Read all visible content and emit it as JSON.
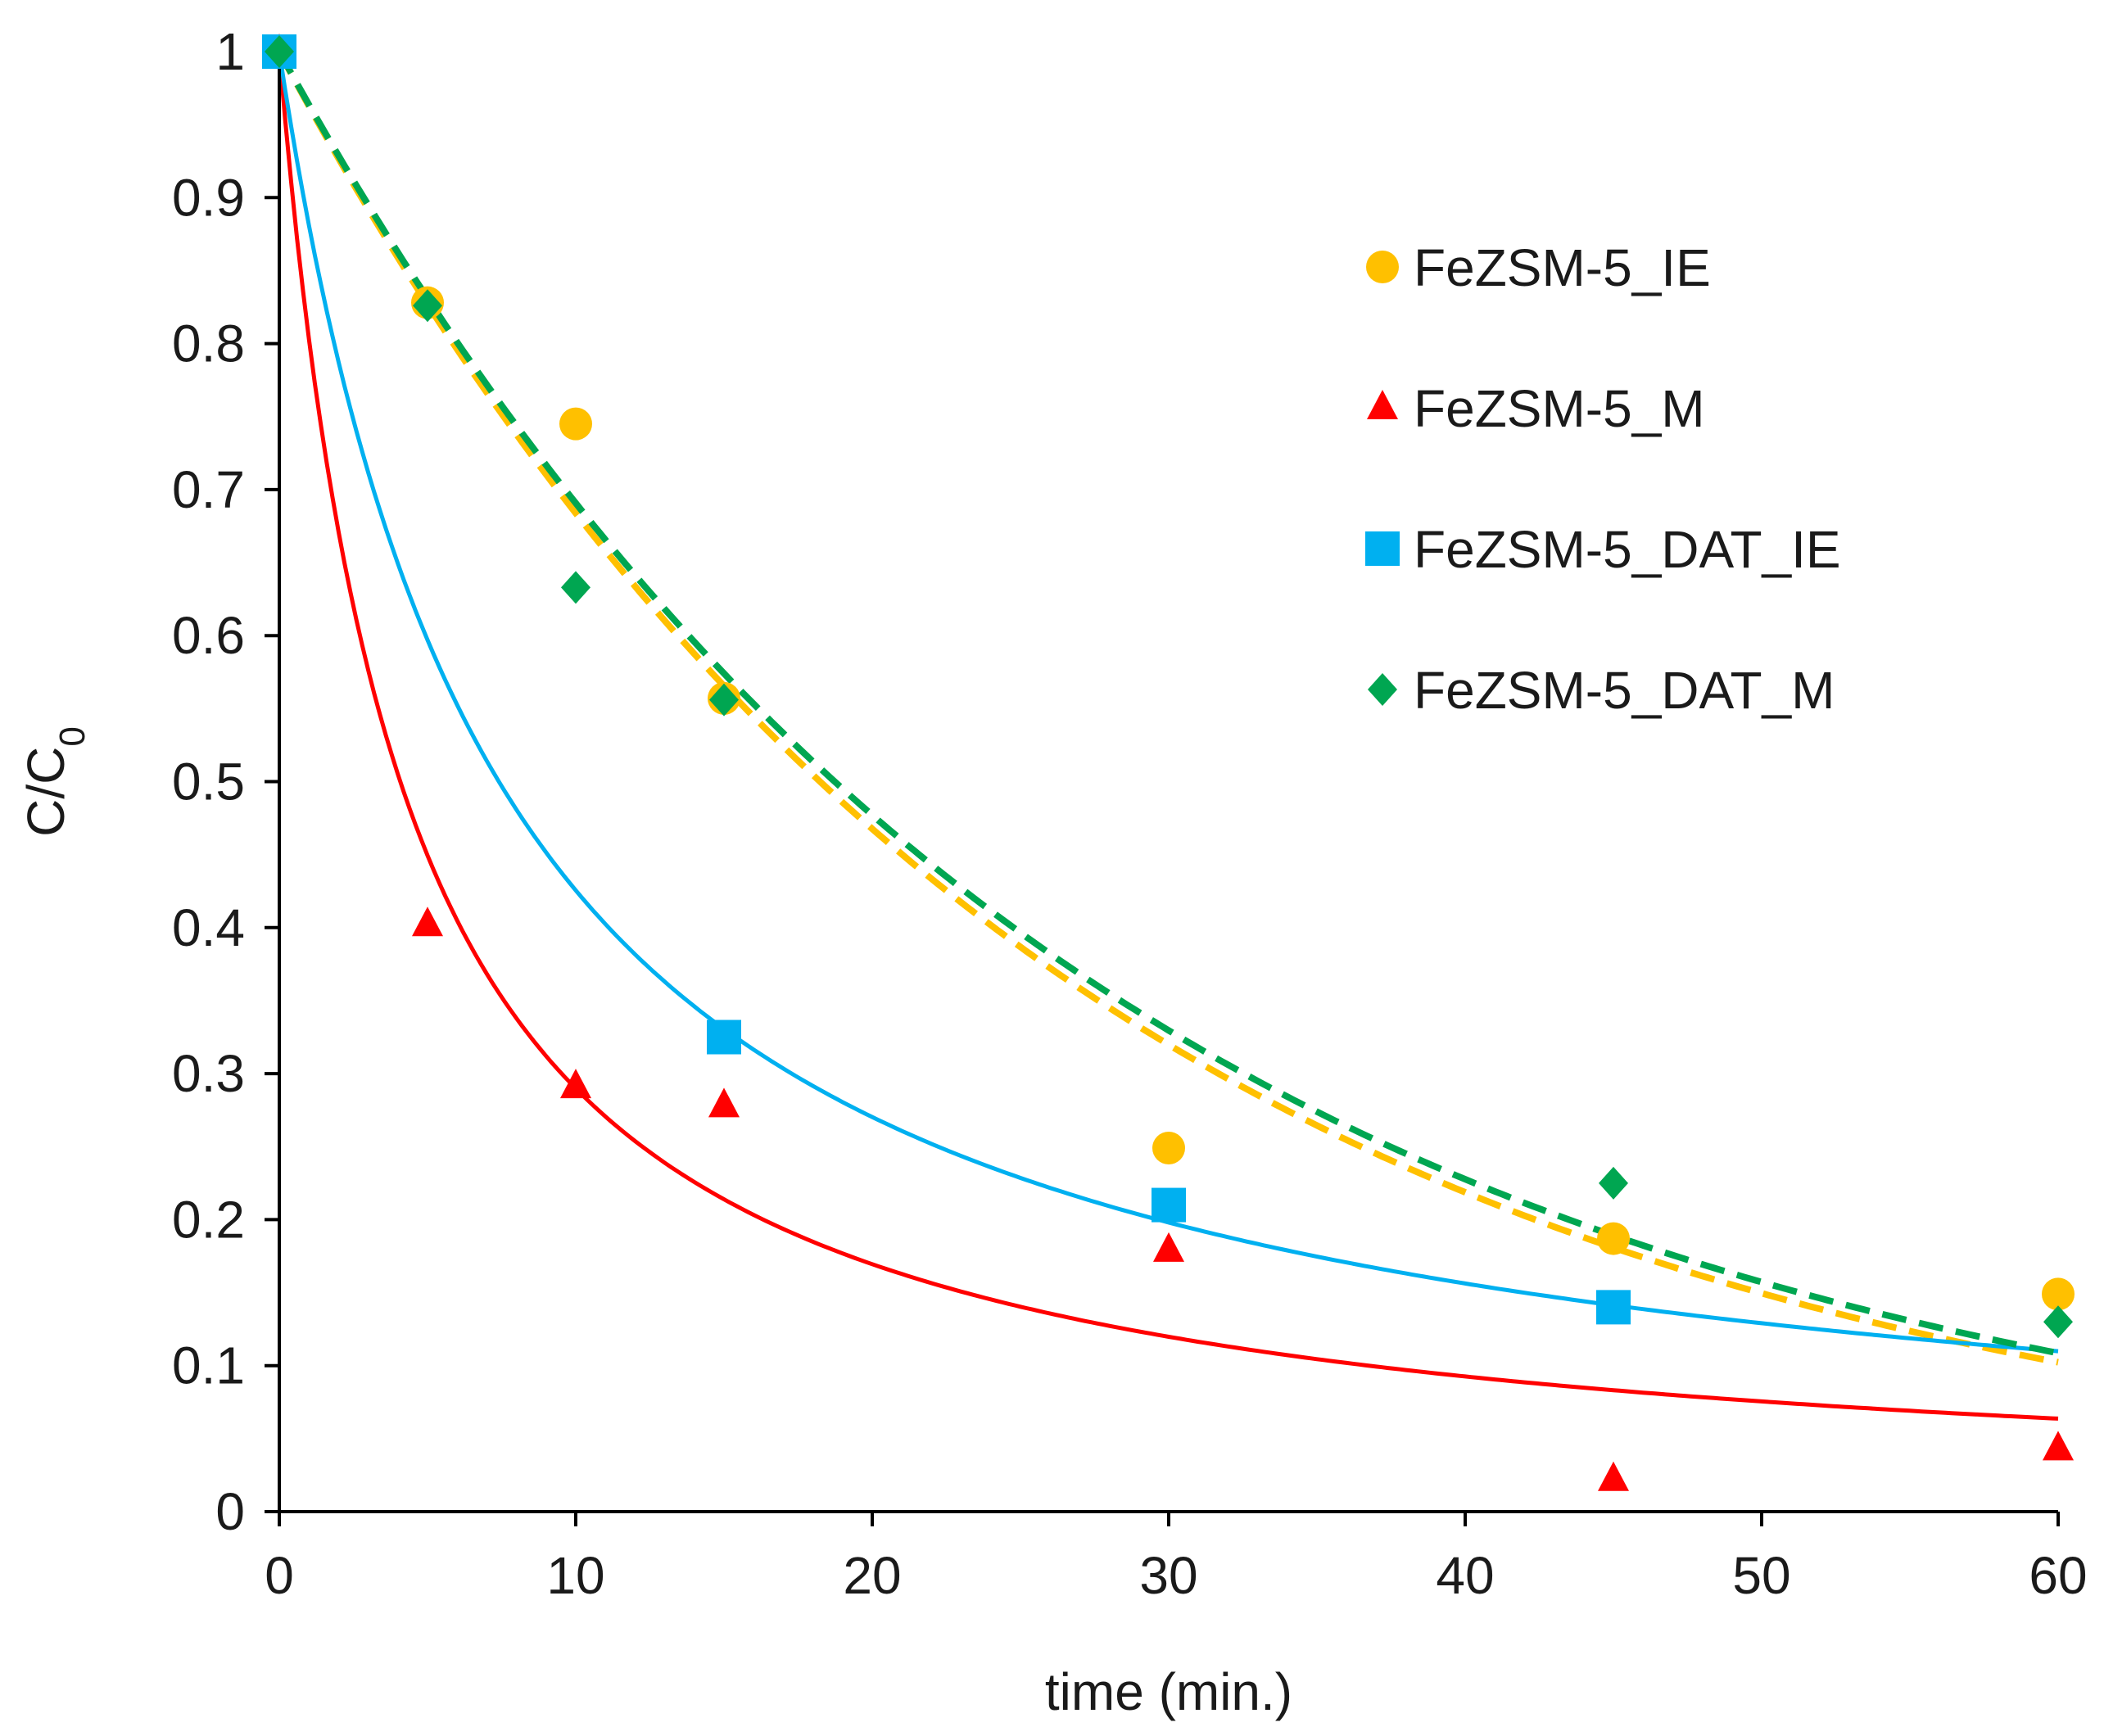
{
  "chart_data": {
    "type": "scatter",
    "xlabel": "time (min.)",
    "ylabel": {
      "main": "C/C",
      "subscript": "0"
    },
    "xlim": [
      0,
      60
    ],
    "ylim": [
      0,
      1
    ],
    "x_ticks": [
      "0",
      "10",
      "20",
      "30",
      "40",
      "50",
      "60"
    ],
    "y_ticks": [
      "0",
      "0.1",
      "0.2",
      "0.3",
      "0.4",
      "0.5",
      "0.6",
      "0.7",
      "0.8",
      "0.9",
      "1"
    ],
    "grid": false,
    "legend_position": "top-right",
    "series": [
      {
        "name": "FeZSM-5_IE",
        "marker": "circle",
        "color": "#FFC000",
        "points": [
          [
            0,
            1.0
          ],
          [
            5,
            0.828
          ],
          [
            10,
            0.745
          ],
          [
            15,
            0.557
          ],
          [
            30,
            0.249
          ],
          [
            45,
            0.187
          ],
          [
            60,
            0.149
          ]
        ],
        "fit": {
          "style": "dashed",
          "model": "exponential",
          "k": 0.038,
          "color": "#FFC000"
        }
      },
      {
        "name": "FeZSM-5_M",
        "marker": "triangle",
        "color": "#FF0000",
        "points": [
          [
            0,
            1.0
          ],
          [
            5,
            0.402
          ],
          [
            10,
            0.291
          ],
          [
            15,
            0.278
          ],
          [
            30,
            0.179
          ],
          [
            45,
            0.022
          ],
          [
            60,
            0.043
          ]
        ],
        "fit": {
          "style": "solid",
          "model": "second-order",
          "k": 0.245,
          "color": "#FF0000"
        }
      },
      {
        "name": "FeZSM-5_DAT_IE",
        "marker": "square",
        "color": "#00B0F0",
        "points": [
          [
            0,
            1.0
          ],
          [
            15,
            0.325
          ],
          [
            30,
            0.21
          ],
          [
            45,
            0.14
          ]
        ],
        "fit": {
          "style": "solid",
          "model": "second-order",
          "k": 0.135,
          "color": "#00B0F0"
        }
      },
      {
        "name": "FeZSM-5_DAT_M",
        "marker": "diamond",
        "color": "#00A651",
        "points": [
          [
            0,
            1.0
          ],
          [
            5,
            0.826
          ],
          [
            10,
            0.633
          ],
          [
            15,
            0.556
          ],
          [
            45,
            0.225
          ],
          [
            60,
            0.13
          ]
        ],
        "fit": {
          "style": "dashed",
          "model": "exponential",
          "k": 0.037,
          "color": "#00A651"
        }
      }
    ]
  }
}
